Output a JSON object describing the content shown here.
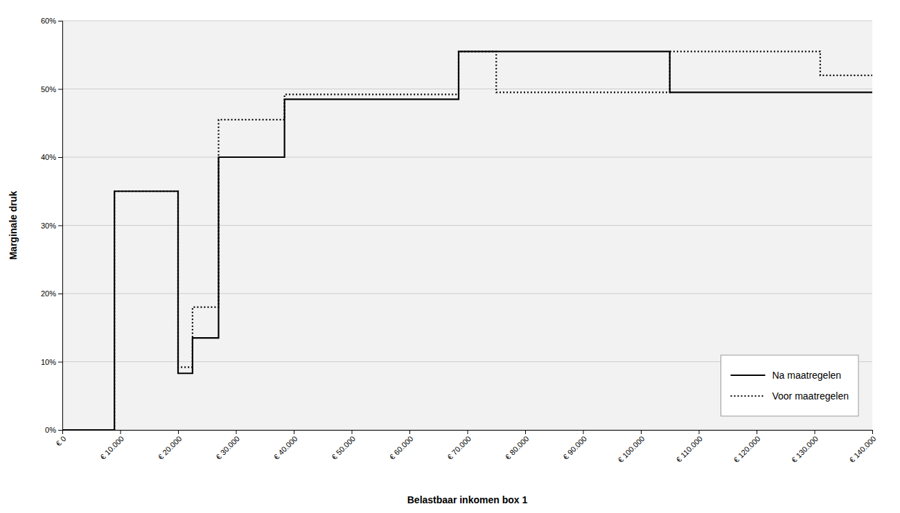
{
  "chart_data": {
    "type": "line",
    "xlabel": "Belastbaar inkomen box 1",
    "ylabel": "Marginale druk",
    "xlim": [
      0,
      140000
    ],
    "ylim": [
      0,
      0.6
    ],
    "xticks": [
      {
        "value": 0,
        "label": "€ 0"
      },
      {
        "value": 10000,
        "label": "€ 10.000"
      },
      {
        "value": 20000,
        "label": "€ 20.000"
      },
      {
        "value": 30000,
        "label": "€ 30.000"
      },
      {
        "value": 40000,
        "label": "€ 40.000"
      },
      {
        "value": 50000,
        "label": "€ 50.000"
      },
      {
        "value": 60000,
        "label": "€ 60.000"
      },
      {
        "value": 70000,
        "label": "€ 70.000"
      },
      {
        "value": 80000,
        "label": "€ 80.000"
      },
      {
        "value": 90000,
        "label": "€ 90.000"
      },
      {
        "value": 100000,
        "label": "€ 100.000"
      },
      {
        "value": 110000,
        "label": "€ 110.000"
      },
      {
        "value": 120000,
        "label": "€ 120.000"
      },
      {
        "value": 130000,
        "label": "€ 130.000"
      },
      {
        "value": 140000,
        "label": "€ 140.000"
      }
    ],
    "yticks": [
      {
        "value": 0.0,
        "label": "0%"
      },
      {
        "value": 0.1,
        "label": "10%"
      },
      {
        "value": 0.2,
        "label": "20%"
      },
      {
        "value": 0.3,
        "label": "30%"
      },
      {
        "value": 0.4,
        "label": "40%"
      },
      {
        "value": 0.5,
        "label": "50%"
      },
      {
        "value": 0.6,
        "label": "60%"
      }
    ],
    "grid": true,
    "legend": "lower right",
    "series": [
      {
        "name": "Na maatregelen",
        "color": "#000000",
        "line_style": "solid",
        "x": [
          0,
          9000,
          9000,
          20000,
          20000,
          22500,
          22500,
          27000,
          27000,
          38400,
          38400,
          68500,
          68500,
          105000,
          105000,
          140000
        ],
        "values": [
          0.0,
          0.0,
          0.35,
          0.35,
          0.083,
          0.083,
          0.135,
          0.135,
          0.4,
          0.4,
          0.485,
          0.485,
          0.555,
          0.555,
          0.495,
          0.495
        ]
      },
      {
        "name": "Voor maatregelen",
        "color": "#000000",
        "line_style": "dotted",
        "x": [
          0,
          9000,
          9000,
          20000,
          20000,
          22500,
          22500,
          27000,
          27000,
          38400,
          38400,
          68500,
          68500,
          75000,
          75000,
          105000,
          105000,
          131000,
          131000,
          140000
        ],
        "values": [
          0.0,
          0.0,
          0.35,
          0.35,
          0.092,
          0.092,
          0.18,
          0.18,
          0.455,
          0.455,
          0.492,
          0.492,
          0.555,
          0.555,
          0.495,
          0.495,
          0.555,
          0.555,
          0.52,
          0.52
        ]
      }
    ]
  }
}
